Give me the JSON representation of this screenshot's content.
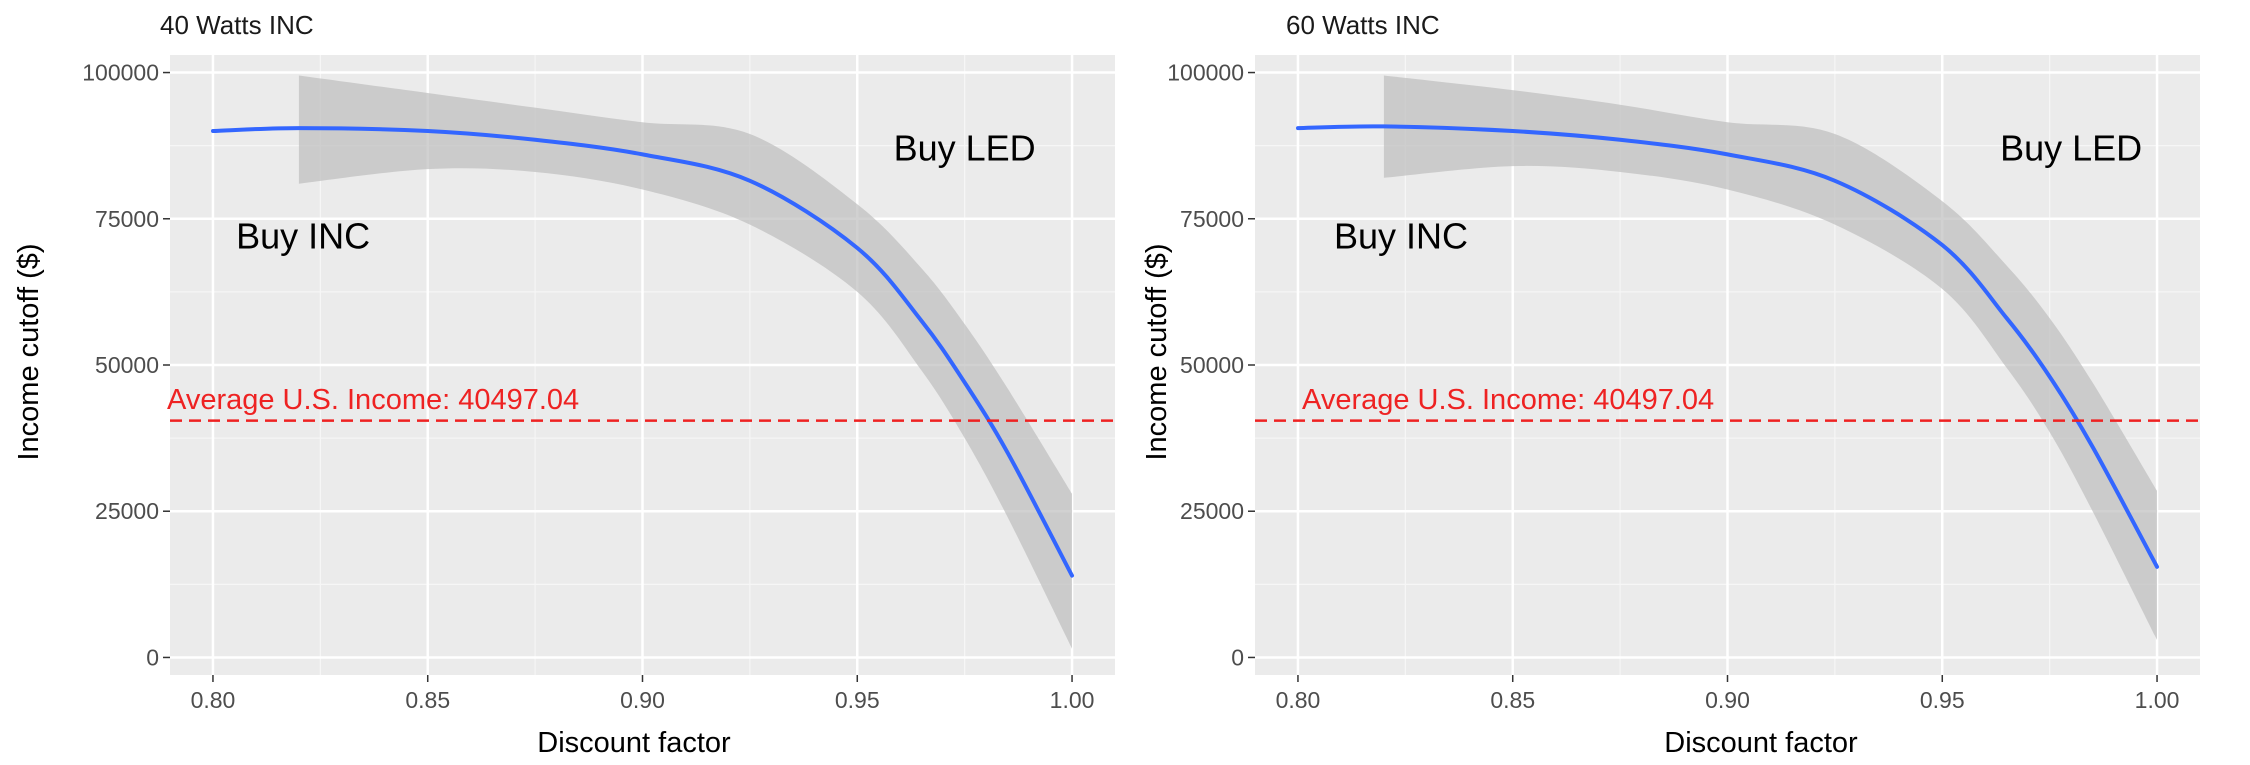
{
  "chart_data": [
    {
      "type": "line",
      "title": "40 Watts INC",
      "xlabel": "Discount factor",
      "ylabel": "Income cutoff ($)",
      "xlim": [
        0.79,
        1.01
      ],
      "ylim": [
        -3000,
        103000
      ],
      "x_ticks": [
        0.8,
        0.85,
        0.9,
        0.95,
        1.0
      ],
      "x_tick_labels": [
        "0.80",
        "0.85",
        "0.90",
        "0.95",
        "1.00"
      ],
      "y_ticks": [
        0,
        25000,
        50000,
        75000,
        100000
      ],
      "y_tick_labels": [
        "0",
        "25000",
        "50000",
        "75000",
        "100000"
      ],
      "grid": true,
      "series": [
        {
          "x": [
            0.8,
            0.82,
            0.85,
            0.875,
            0.9,
            0.925,
            0.95,
            0.965,
            0.975,
            0.985,
            1.0
          ],
          "y": [
            90000,
            90500,
            90000,
            88500,
            86000,
            81500,
            70000,
            57500,
            47000,
            35000,
            14000
          ],
          "upper": [
            null,
            99500,
            96500,
            94000,
            91500,
            89500,
            77500,
            66500,
            57000,
            46000,
            28000
          ],
          "lower": [
            null,
            81000,
            83500,
            83000,
            80000,
            74000,
            62500,
            49000,
            37500,
            24000,
            1500
          ],
          "color": "#3366FF"
        }
      ],
      "band_fill": "#BDBDBD",
      "reference_line": {
        "y": 40497.04,
        "label": "Average U.S. Income: 40497.04",
        "color": "#EE2222"
      },
      "annotations": [
        {
          "text": "Buy INC",
          "x": 0.821,
          "y": 72000
        },
        {
          "text": "Buy LED",
          "x": 0.975,
          "y": 87000
        }
      ]
    },
    {
      "type": "line",
      "title": "60 Watts INC",
      "xlabel": "Discount factor",
      "ylabel": "Income cutoff ($)",
      "xlim": [
        0.79,
        1.01
      ],
      "ylim": [
        -3000,
        103000
      ],
      "x_ticks": [
        0.8,
        0.85,
        0.9,
        0.95,
        1.0
      ],
      "x_tick_labels": [
        "0.80",
        "0.85",
        "0.90",
        "0.95",
        "1.00"
      ],
      "y_ticks": [
        0,
        25000,
        50000,
        75000,
        100000
      ],
      "y_tick_labels": [
        "0",
        "25000",
        "50000",
        "75000",
        "100000"
      ],
      "grid": true,
      "series": [
        {
          "x": [
            0.8,
            0.82,
            0.85,
            0.875,
            0.9,
            0.925,
            0.95,
            0.965,
            0.975,
            0.985,
            1.0
          ],
          "y": [
            90500,
            90800,
            90000,
            88500,
            86000,
            81500,
            70500,
            58000,
            48000,
            36000,
            15500
          ],
          "upper": [
            null,
            99500,
            97000,
            94500,
            91500,
            89500,
            78000,
            67000,
            58000,
            47000,
            28500
          ],
          "lower": [
            null,
            82000,
            84000,
            83000,
            80000,
            74000,
            63000,
            49500,
            38500,
            25000,
            3000
          ],
          "color": "#3366FF"
        }
      ],
      "band_fill": "#BDBDBD",
      "reference_line": {
        "y": 40497.04,
        "label": "Average U.S. Income: 40497.04",
        "color": "#EE2222"
      },
      "annotations": [
        {
          "text": "Buy INC",
          "x": 0.824,
          "y": 72000
        },
        {
          "text": "Buy LED",
          "x": 0.98,
          "y": 87000
        }
      ]
    }
  ]
}
